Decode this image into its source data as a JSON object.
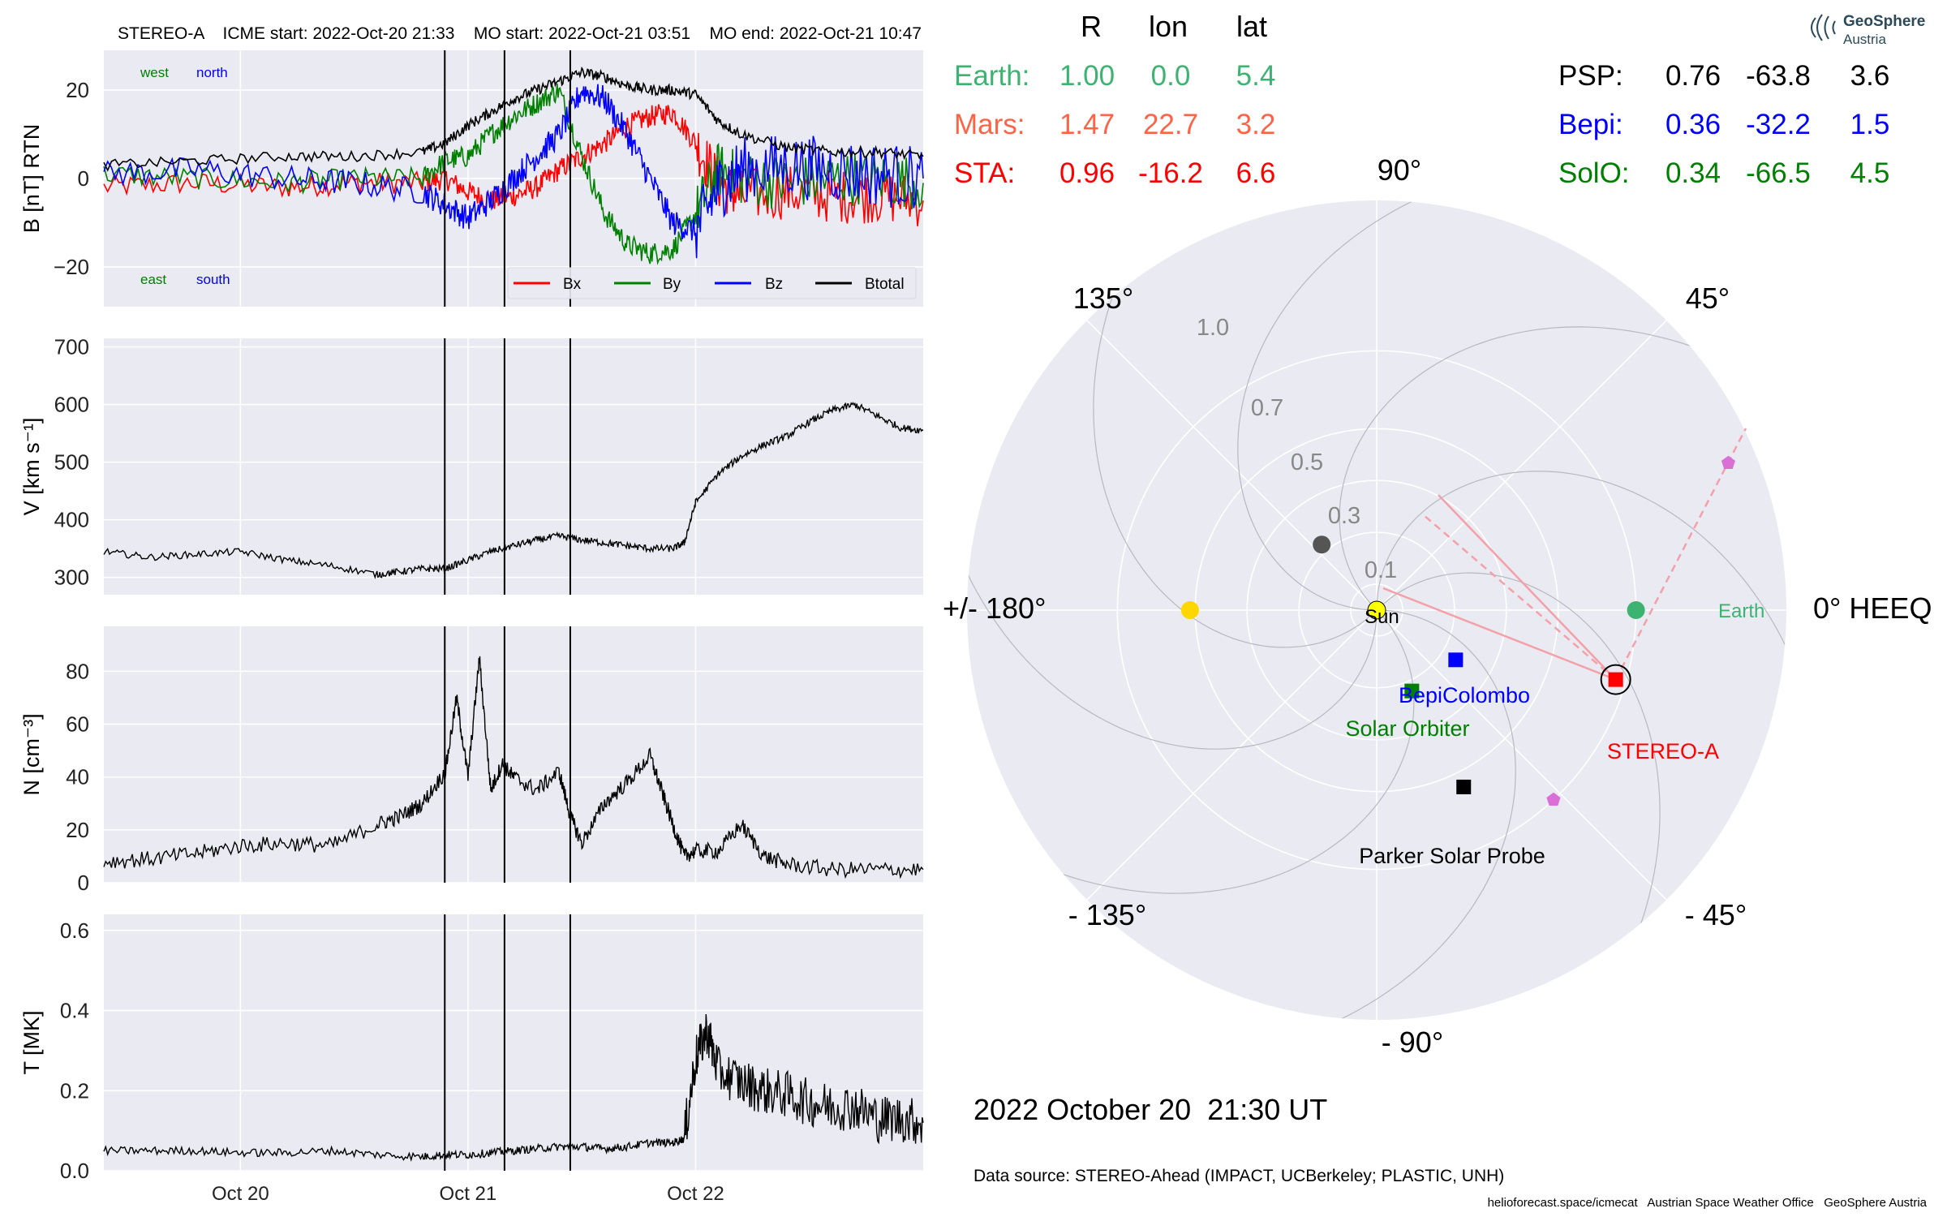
{
  "header": {
    "title": "STEREO-A    ICME start: 2022-Oct-20 21:33    MO start: 2022-Oct-21 03:51    MO end: 2022-Oct-21 10:47"
  },
  "logo": {
    "line1": "GeoSphere",
    "line2": "Austria"
  },
  "colors": {
    "bx": "#ff0000",
    "by": "#008000",
    "bz": "#0000ff",
    "btotal": "#000000",
    "panel_bg": "#eaeaf2",
    "earth": "#3cb371",
    "mars": "#ff6347",
    "sta": "#ff0000",
    "psp": "#000000",
    "bepi": "#0000ff",
    "solo": "#008000",
    "sun": "#ffff00",
    "mercury": "#555555",
    "venus": "#ffd700",
    "magenta": "#da70d6",
    "spiral": "#f4a0a8"
  },
  "chart_data": [
    {
      "type": "line",
      "panel": "magnetic-field",
      "ylabel": "B [nT] RTN",
      "ylim": [
        -29,
        29
      ],
      "yticks": [
        {
          "v": 20,
          "t": "20"
        },
        {
          "v": 0,
          "t": "0"
        },
        {
          "v": -20,
          "t": "−20"
        }
      ],
      "annotations": {
        "west": "west",
        "north": "north",
        "east": "east",
        "south": "south"
      },
      "legend": [
        "Bx",
        "By",
        "Bz",
        "Btotal"
      ],
      "x_unit": "days after 2022-Oct-19 00:00",
      "xlim": [
        0.4,
        4.0
      ],
      "vlines": [
        1.8979,
        2.1604,
        2.4493
      ],
      "series": [
        {
          "name": "Bx",
          "color": "#ff0000",
          "x": [
            0.4,
            0.8,
            1.2,
            1.5,
            1.8,
            1.9,
            2.0,
            2.1,
            2.2,
            2.3,
            2.4,
            2.5,
            2.6,
            2.7,
            2.8,
            2.9,
            3.0,
            3.1,
            3.2,
            3.4,
            3.6,
            3.8,
            4.0
          ],
          "y": [
            -2,
            -1,
            -2,
            -1,
            -1,
            0,
            -3,
            -5,
            -4,
            -2,
            2,
            5,
            8,
            12,
            14,
            15,
            8,
            -1,
            -4,
            -3,
            -4,
            -4,
            -5
          ]
        },
        {
          "name": "By",
          "color": "#008000",
          "x": [
            0.4,
            0.8,
            1.2,
            1.5,
            1.8,
            1.9,
            2.0,
            2.1,
            2.2,
            2.3,
            2.4,
            2.5,
            2.6,
            2.7,
            2.8,
            2.9,
            3.0,
            3.1,
            3.2,
            3.4,
            3.6,
            3.8,
            4.0
          ],
          "y": [
            1,
            0,
            -1,
            0,
            0,
            4,
            5,
            10,
            14,
            17,
            20,
            5,
            -8,
            -15,
            -17,
            -16,
            -8,
            2,
            0,
            -1,
            0,
            0,
            -1
          ]
        },
        {
          "name": "Bz",
          "color": "#0000ff",
          "x": [
            0.4,
            0.8,
            1.2,
            1.5,
            1.8,
            1.9,
            2.0,
            2.1,
            2.2,
            2.3,
            2.4,
            2.5,
            2.6,
            2.7,
            2.8,
            2.9,
            3.0,
            3.1,
            3.2,
            3.4,
            3.6,
            3.8,
            4.0
          ],
          "y": [
            1,
            2,
            0,
            -1,
            -3,
            -6,
            -9,
            -5,
            0,
            5,
            10,
            20,
            18,
            10,
            0,
            -10,
            -12,
            -2,
            2,
            3,
            2,
            1,
            0
          ]
        },
        {
          "name": "Btotal",
          "color": "#000000",
          "x": [
            0.4,
            0.8,
            1.2,
            1.5,
            1.8,
            1.9,
            2.0,
            2.1,
            2.2,
            2.3,
            2.4,
            2.5,
            2.6,
            2.7,
            2.8,
            2.9,
            3.0,
            3.1,
            3.2,
            3.4,
            3.6,
            3.8,
            4.0
          ],
          "y": [
            3,
            4,
            5,
            5,
            6,
            8,
            12,
            15,
            18,
            20,
            22,
            24,
            23,
            21,
            20,
            20,
            19,
            13,
            10,
            7,
            6,
            6,
            5
          ]
        }
      ]
    },
    {
      "type": "line",
      "panel": "velocity",
      "ylabel": "V [km s⁻¹]",
      "ylim": [
        270,
        715
      ],
      "yticks": [
        {
          "v": 300,
          "t": "300"
        },
        {
          "v": 400,
          "t": "400"
        },
        {
          "v": 500,
          "t": "500"
        },
        {
          "v": 600,
          "t": "600"
        },
        {
          "v": 700,
          "t": "700"
        }
      ],
      "x_unit": "days after 2022-Oct-19 00:00",
      "xlim": [
        0.4,
        4.0
      ],
      "vlines": [
        1.8979,
        2.1604,
        2.4493
      ],
      "series": [
        {
          "name": "V",
          "color": "#000000",
          "x": [
            0.4,
            0.6,
            0.8,
            1.0,
            1.2,
            1.4,
            1.6,
            1.7,
            1.8,
            1.9,
            2.0,
            2.1,
            2.2,
            2.3,
            2.4,
            2.5,
            2.6,
            2.7,
            2.8,
            2.9,
            2.95,
            3.0,
            3.1,
            3.2,
            3.3,
            3.4,
            3.5,
            3.6,
            3.7,
            3.8,
            3.9,
            4.0
          ],
          "y": [
            345,
            335,
            340,
            345,
            330,
            320,
            305,
            310,
            315,
            315,
            330,
            345,
            355,
            365,
            372,
            365,
            360,
            355,
            350,
            350,
            360,
            430,
            480,
            510,
            530,
            545,
            570,
            590,
            600,
            580,
            560,
            555
          ]
        }
      ]
    },
    {
      "type": "line",
      "panel": "density",
      "ylabel": "N [cm⁻³]",
      "ylim": [
        0,
        97
      ],
      "yticks": [
        {
          "v": 0,
          "t": "0"
        },
        {
          "v": 20,
          "t": "20"
        },
        {
          "v": 40,
          "t": "40"
        },
        {
          "v": 60,
          "t": "60"
        },
        {
          "v": 80,
          "t": "80"
        }
      ],
      "x_unit": "days after 2022-Oct-19 00:00",
      "xlim": [
        0.4,
        4.0
      ],
      "vlines": [
        1.8979,
        2.1604,
        2.4493
      ],
      "series": [
        {
          "name": "N",
          "color": "#000000",
          "x": [
            0.4,
            0.6,
            0.8,
            1.0,
            1.2,
            1.4,
            1.6,
            1.7,
            1.8,
            1.9,
            1.95,
            2.0,
            2.05,
            2.1,
            2.15,
            2.2,
            2.3,
            2.4,
            2.45,
            2.5,
            2.6,
            2.7,
            2.8,
            2.85,
            2.9,
            2.95,
            3.0,
            3.1,
            3.2,
            3.3,
            3.4,
            3.6,
            3.8,
            4.0
          ],
          "y": [
            8,
            9,
            11,
            14,
            15,
            14,
            22,
            25,
            30,
            42,
            70,
            40,
            85,
            35,
            45,
            40,
            35,
            42,
            25,
            15,
            30,
            38,
            48,
            35,
            22,
            10,
            12,
            12,
            22,
            10,
            7,
            5,
            5,
            5
          ]
        }
      ]
    },
    {
      "type": "line",
      "panel": "temperature",
      "ylabel": "T [MK]",
      "ylim": [
        0,
        0.64
      ],
      "yticks": [
        {
          "v": 0.0,
          "t": "0.0"
        },
        {
          "v": 0.2,
          "t": "0.2"
        },
        {
          "v": 0.4,
          "t": "0.4"
        },
        {
          "v": 0.6,
          "t": "0.6"
        }
      ],
      "xticks": [
        {
          "v": 1.0,
          "t": "Oct 20"
        },
        {
          "v": 2.0,
          "t": "Oct 21"
        },
        {
          "v": 3.0,
          "t": "Oct 22"
        }
      ],
      "x_unit": "days after 2022-Oct-19 00:00",
      "xlim": [
        0.4,
        4.0
      ],
      "vlines": [
        1.8979,
        2.1604,
        2.4493
      ],
      "series": [
        {
          "name": "T",
          "color": "#000000",
          "x": [
            0.4,
            0.6,
            0.8,
            1.0,
            1.2,
            1.4,
            1.6,
            1.8,
            1.9,
            2.0,
            2.1,
            2.2,
            2.3,
            2.4,
            2.5,
            2.6,
            2.7,
            2.8,
            2.9,
            2.95,
            3.0,
            3.05,
            3.1,
            3.2,
            3.3,
            3.4,
            3.5,
            3.6,
            3.7,
            3.8,
            3.9,
            4.0
          ],
          "y": [
            0.05,
            0.05,
            0.05,
            0.045,
            0.045,
            0.05,
            0.04,
            0.035,
            0.04,
            0.04,
            0.045,
            0.05,
            0.055,
            0.06,
            0.06,
            0.055,
            0.06,
            0.07,
            0.07,
            0.08,
            0.28,
            0.35,
            0.25,
            0.22,
            0.2,
            0.19,
            0.17,
            0.16,
            0.16,
            0.13,
            0.13,
            0.12
          ]
        }
      ]
    },
    {
      "type": "scatter",
      "panel": "polar-orbit-plot",
      "projection": "polar",
      "angle_labels": [
        {
          "deg": 90,
          "t": "90°"
        },
        {
          "deg": 45,
          "t": "45°"
        },
        {
          "deg": 0,
          "t": "0° HEEQ"
        },
        {
          "deg": -45,
          "t": "- 45°"
        },
        {
          "deg": -90,
          "t": "- 90°"
        },
        {
          "deg": -135,
          "t": "- 135°"
        },
        {
          "deg": 180,
          "t": "+/- 180°"
        },
        {
          "deg": 135,
          "t": "135°"
        }
      ],
      "r_labels": [
        "0.1",
        "0.3",
        "0.5",
        "0.7",
        "1.0"
      ],
      "objects": [
        {
          "name": "Sun",
          "label": "Sun",
          "r": 0.0,
          "lon": 0.0,
          "color": "#ffff00",
          "marker": "circle"
        },
        {
          "name": "Earth",
          "label": "Earth",
          "r": 1.0,
          "lon": 0.0,
          "color": "#3cb371",
          "marker": "circle"
        },
        {
          "name": "STEREO-A",
          "label": "STEREO-A",
          "r": 0.96,
          "lon": -16.2,
          "color": "#ff0000",
          "marker": "square"
        },
        {
          "name": "BepiColombo",
          "label": "BepiColombo",
          "r": 0.36,
          "lon": -32.2,
          "color": "#0000ff",
          "marker": "square"
        },
        {
          "name": "Solar Orbiter",
          "label": "Solar Orbiter",
          "r": 0.34,
          "lon": -66.5,
          "color": "#008000",
          "marker": "square"
        },
        {
          "name": "Parker Solar Probe",
          "label": "Parker Solar Probe",
          "r": 0.76,
          "lon": -63.8,
          "color": "#000000",
          "marker": "square"
        },
        {
          "name": "Mercury",
          "label": "",
          "r": 0.33,
          "lon": 130,
          "color": "#555555",
          "marker": "circle"
        },
        {
          "name": "Venus",
          "label": "",
          "r": 0.72,
          "lon": 180,
          "color": "#ffd700",
          "marker": "circle"
        },
        {
          "name": "Mars",
          "label": "",
          "r": 1.47,
          "lon": 22.7,
          "color": "#da70d6",
          "marker": "pentagon"
        },
        {
          "name": "Magenta2",
          "label": "",
          "r": 1.0,
          "lon": -47,
          "color": "#da70d6",
          "marker": "pentagon"
        }
      ]
    }
  ],
  "positions_table": {
    "headers": [
      "R",
      "lon",
      "lat"
    ],
    "left_rows": [
      {
        "name": "Earth:",
        "r": "1.00",
        "lon": "0.0",
        "lat": "5.4",
        "color": "#3cb371"
      },
      {
        "name": "Mars:",
        "r": "1.47",
        "lon": "22.7",
        "lat": "3.2",
        "color": "#ff6347"
      },
      {
        "name": "STA:",
        "r": "0.96",
        "lon": "-16.2",
        "lat": "6.6",
        "color": "#ff0000"
      }
    ],
    "right_rows": [
      {
        "name": "PSP:",
        "r": "0.76",
        "lon": "-63.8",
        "lat": "3.6",
        "color": "#000000"
      },
      {
        "name": "Bepi:",
        "r": "0.36",
        "lon": "-32.2",
        "lat": "1.5",
        "color": "#0000ff"
      },
      {
        "name": "SolO:",
        "r": "0.34",
        "lon": "-66.5",
        "lat": "4.5",
        "color": "#008000"
      }
    ]
  },
  "footer": {
    "datetime": "2022 October 20  21:30 UT",
    "source": "Data source: STEREO-Ahead (IMPACT, UCBerkeley; PLASTIC, UNH)",
    "credits": "helioforecast.space/icmecat   Austrian Space Weather Office   GeoSphere Austria"
  }
}
